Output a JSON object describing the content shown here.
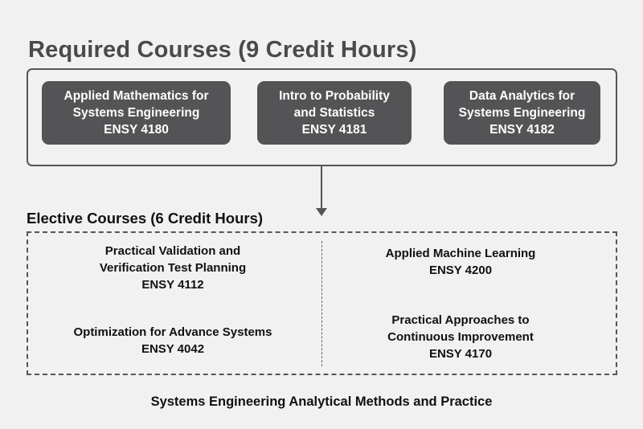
{
  "required": {
    "title": "Required Courses (9 Credit Hours)",
    "courses": [
      {
        "line1": "Applied Mathematics for",
        "line2": "Systems Engineering",
        "code": "ENSY 4180"
      },
      {
        "line1": "Intro to Probability",
        "line2": "and Statistics",
        "code": "ENSY 4181"
      },
      {
        "line1": "Data Analytics for",
        "line2": "Systems Engineering",
        "code": "ENSY 4182"
      }
    ]
  },
  "elective": {
    "title": "Elective Courses (6 Credit Hours)",
    "left": [
      {
        "line1": "Practical Validation and",
        "line2": "Verification Test Planning",
        "code": "ENSY 4112"
      },
      {
        "line1": "Optimization for Advance Systems",
        "code": "ENSY 4042"
      }
    ],
    "right": [
      {
        "line1": "Applied Machine Learning",
        "code": "ENSY 4200"
      },
      {
        "line1": "Practical Approaches to",
        "line2": "Continuous Improvement",
        "code": "ENSY 4170"
      }
    ]
  },
  "footer": "Systems Engineering Analytical Methods and Practice",
  "colors": {
    "box_fill": "#545457",
    "border": "#555555",
    "background": "#f1f1f1"
  }
}
